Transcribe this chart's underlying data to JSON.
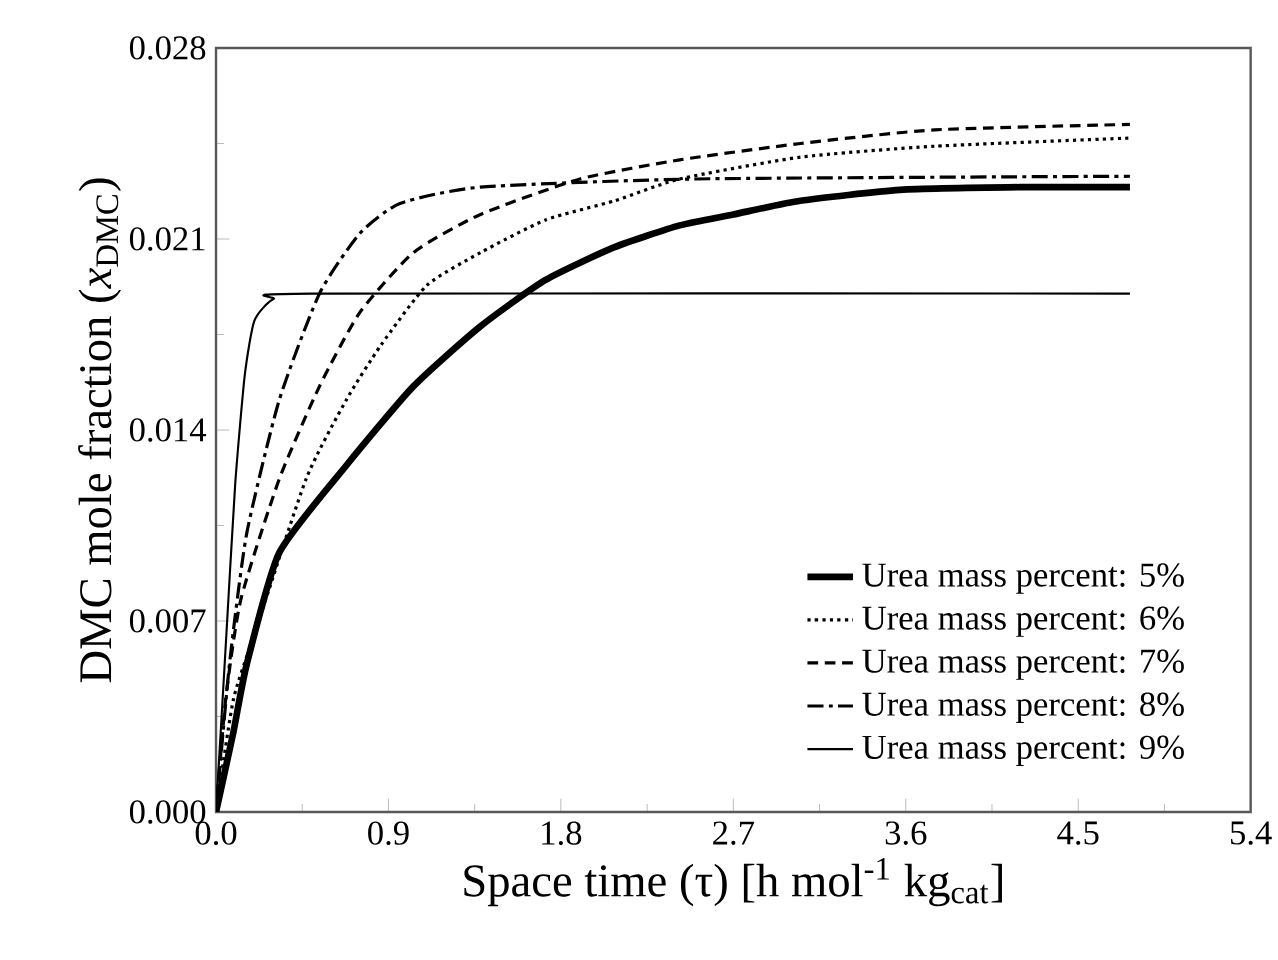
{
  "chart_data": {
    "type": "line",
    "xlabel": "Space time (τ) [h mol$^{-1}$ kg$_{cat}$]",
    "ylabel": "DMC mole fraction (*x*$_{DMC}$)",
    "xlim": [
      0,
      5.4
    ],
    "ylim": [
      0,
      0.028
    ],
    "xticks": [
      {
        "value": 0,
        "label": "0.0"
      },
      {
        "value": 0.9,
        "label": "0.9"
      },
      {
        "value": 1.8,
        "label": "1.8"
      },
      {
        "value": 2.7,
        "label": "2.7"
      },
      {
        "value": 3.6,
        "label": "3.6"
      },
      {
        "value": 4.5,
        "label": "4.5"
      },
      {
        "value": 5.4,
        "label": "5.4"
      }
    ],
    "yticks": [
      {
        "value": 0,
        "label": "0.000"
      },
      {
        "value": 0.007,
        "label": "0.007"
      },
      {
        "value": 0.014,
        "label": "0.014"
      },
      {
        "value": 0.021,
        "label": "0.021"
      },
      {
        "value": 0.028,
        "label": "0.028"
      }
    ],
    "legend": "bottom right",
    "grid": false,
    "marker": "none",
    "series": [
      {
        "name": "Urea mass percent: 5%",
        "color": "#000000",
        "line_style": "solid",
        "x": [
          0,
          0.09,
          0.16,
          0.33,
          0.68,
          1.03,
          1.38,
          1.72,
          2.08,
          2.42,
          2.7,
          3.05,
          3.57,
          4.2,
          4.77
        ],
        "values": [
          0,
          0.0029,
          0.0054,
          0.0095,
          0.0127,
          0.0156,
          0.0178,
          0.0195,
          0.0207,
          0.0215,
          0.0219,
          0.0224,
          0.0228,
          0.0229,
          0.0229
        ]
      },
      {
        "name": "Urea mass percent: 6%",
        "color": "#000000",
        "line_style": "dotted",
        "x": [
          0,
          0.09,
          0.2,
          0.47,
          0.68,
          0.86,
          1.1,
          1.38,
          1.72,
          2.08,
          2.42,
          3.05,
          3.75,
          4.77
        ],
        "values": [
          0,
          0.0041,
          0.0065,
          0.0122,
          0.0151,
          0.0171,
          0.0193,
          0.0205,
          0.0217,
          0.0224,
          0.0232,
          0.024,
          0.0244,
          0.0247
        ]
      },
      {
        "name": "Urea mass percent: 7%",
        "color": "#000000",
        "line_style": "dashed",
        "x": [
          0,
          0.05,
          0.13,
          0.33,
          0.54,
          0.75,
          1.03,
          1.38,
          1.9,
          2.42,
          3.05,
          3.75,
          4.77
        ],
        "values": [
          0,
          0.0041,
          0.0078,
          0.0122,
          0.0156,
          0.0183,
          0.0205,
          0.0219,
          0.0232,
          0.0239,
          0.0245,
          0.025,
          0.0252
        ]
      },
      {
        "name": "Urea mass percent: 8%",
        "color": "#000000",
        "line_style": "dashdot",
        "x": [
          0,
          0.07,
          0.16,
          0.33,
          0.54,
          0.75,
          0.96,
          1.38,
          2.5,
          4.77
        ],
        "values": [
          0,
          0.0054,
          0.0102,
          0.0151,
          0.019,
          0.0212,
          0.0223,
          0.0229,
          0.0232,
          0.0233
        ]
      },
      {
        "name": "Urea mass percent: 9%",
        "color": "#000000",
        "line_style": "solid",
        "x": [
          0,
          0.05,
          0.1,
          0.15,
          0.2,
          0.3,
          0.5,
          4.77
        ],
        "values": [
          0,
          0.006,
          0.012,
          0.016,
          0.018,
          0.0188,
          0.019,
          0.019
        ]
      }
    ]
  }
}
